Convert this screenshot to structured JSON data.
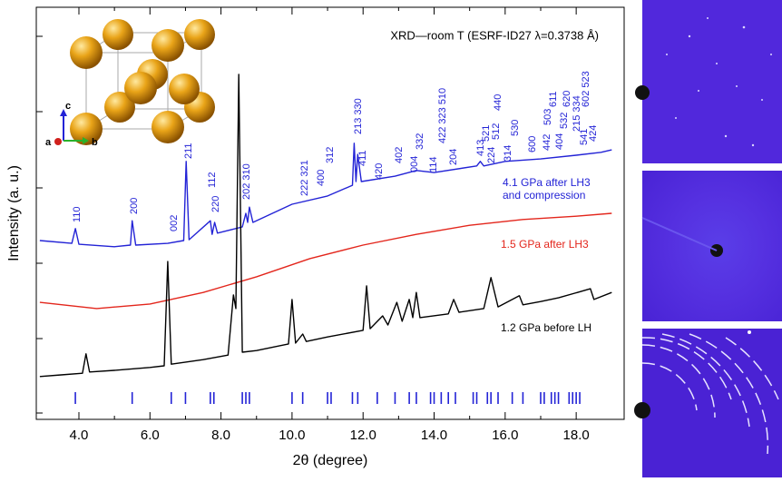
{
  "chart_data": {
    "type": "line",
    "annotation": "XRD—room T (ESRF-ID27 λ=0.3738 Å)",
    "xlabel": "2θ (degree)",
    "ylabel": "Intensity (a. u.)",
    "xlim": [
      2.8,
      19.35
    ],
    "ylim": [
      0,
      100
    ],
    "xticks": [
      {
        "value": 4,
        "label": "4.0"
      },
      {
        "value": 6,
        "label": "6.0"
      },
      {
        "value": 8,
        "label": "8.0"
      },
      {
        "value": 10,
        "label": "10.0"
      },
      {
        "value": 12,
        "label": "12.0"
      },
      {
        "value": 14,
        "label": "14.0"
      },
      {
        "value": 16,
        "label": "16.0"
      },
      {
        "value": 18,
        "label": "18.0"
      }
    ],
    "series": [
      {
        "name": "4.1 GPa after LH3",
        "color": "#2323d6",
        "x": [
          2.9,
          3.8,
          3.9,
          4.0,
          5.0,
          5.45,
          5.5,
          5.6,
          6.5,
          6.95,
          7.02,
          7.1,
          7.7,
          7.75,
          7.82,
          7.9,
          8.6,
          8.7,
          8.75,
          8.8,
          8.9,
          10.0,
          11.0,
          11.7,
          11.75,
          11.8,
          11.85,
          11.95,
          12.9,
          13.5,
          14.0,
          15.2,
          15.3,
          15.4,
          16.0,
          17.0,
          18.0,
          18.7,
          19.0
        ],
        "values": [
          43.4,
          42.7,
          46.3,
          42.5,
          41.9,
          42.3,
          48.2,
          42.3,
          42.7,
          43.4,
          62.6,
          43.6,
          48.2,
          44.9,
          47.8,
          45.2,
          46.7,
          50.0,
          47.8,
          51.5,
          47.8,
          52.2,
          54.2,
          56.8,
          67.0,
          57.7,
          64.3,
          57.7,
          59.0,
          60.4,
          59.9,
          61.5,
          62.6,
          61.5,
          62.6,
          63.2,
          64.1,
          64.8,
          65.4
        ]
      },
      {
        "name": "1.5 GPa after LH3",
        "color": "#e3261c",
        "x": [
          2.9,
          4.5,
          6.0,
          7.5,
          9.0,
          10.5,
          12.0,
          13.5,
          15.0,
          16.5,
          18.0,
          19.0
        ],
        "values": [
          28.4,
          26.9,
          28.0,
          30.8,
          34.6,
          39.0,
          42.3,
          44.9,
          47.1,
          48.5,
          49.3,
          50.0
        ]
      },
      {
        "name": "1.2 GPa before LH",
        "color": "#000000",
        "x": [
          2.9,
          3.5,
          4.1,
          4.2,
          4.3,
          5.0,
          6.0,
          6.4,
          6.5,
          6.6,
          7.5,
          8.2,
          8.35,
          8.42,
          8.5,
          8.6,
          9.0,
          9.9,
          10.0,
          10.1,
          10.3,
          10.4,
          11.0,
          12.0,
          12.1,
          12.2,
          12.55,
          12.7,
          12.95,
          13.1,
          13.3,
          13.4,
          13.5,
          13.6,
          14.4,
          14.55,
          14.7,
          15.4,
          15.6,
          15.8,
          16.4,
          16.5,
          17.0,
          17.5,
          18.4,
          18.5,
          19.0
        ],
        "values": [
          10.4,
          10.8,
          11.2,
          15.9,
          11.5,
          11.9,
          12.6,
          13.0,
          38.3,
          13.4,
          14.5,
          15.6,
          30.2,
          26.9,
          83.7,
          16.3,
          16.7,
          18.3,
          29.1,
          18.5,
          20.7,
          18.9,
          20.0,
          21.6,
          32.4,
          22.0,
          25.1,
          22.9,
          28.4,
          23.8,
          29.1,
          24.7,
          30.8,
          24.7,
          25.6,
          29.1,
          26.0,
          26.9,
          34.4,
          27.3,
          30.0,
          27.8,
          28.6,
          29.5,
          31.7,
          29.1,
          30.8
        ]
      }
    ],
    "series_note": "and compression",
    "reflection_positions": [
      3.9,
      5.5,
      6.6,
      7.0,
      7.7,
      7.8,
      8.6,
      8.7,
      8.8,
      10.0,
      10.3,
      11.0,
      11.1,
      11.7,
      11.85,
      12.4,
      12.9,
      13.3,
      13.5,
      13.9,
      14.0,
      14.2,
      14.4,
      14.6,
      15.1,
      15.2,
      15.5,
      15.6,
      15.8,
      16.2,
      16.5,
      17.0,
      17.1,
      17.3,
      17.4,
      17.5,
      17.8,
      17.9,
      18.0,
      18.1
    ],
    "hkl_labels": [
      "110",
      "200",
      "002",
      "211",
      "112",
      "220",
      "202 310",
      "222 321",
      "400",
      "312",
      "213 330",
      "411",
      "420",
      "402",
      "004",
      "332",
      "114",
      "422 323 510",
      "204",
      "413",
      "521",
      "224",
      "512",
      "440",
      "314",
      "530",
      "600",
      "442",
      "503",
      "611",
      "404",
      "532",
      "620",
      "541",
      "215 334",
      "602 523",
      "424"
    ],
    "inset_axes": [
      "a",
      "b",
      "c"
    ]
  }
}
